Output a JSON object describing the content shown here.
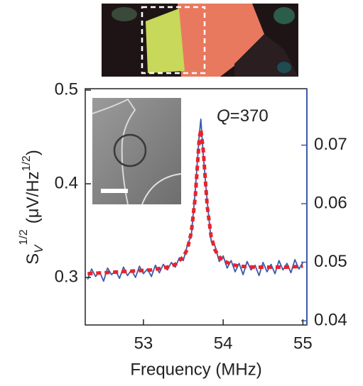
{
  "chart_data": {
    "type": "line",
    "ylabel_parts": [
      "S",
      "V",
      "1/2",
      "(μV/Hz",
      "1/2",
      ")"
    ],
    "xlabel": "Frequency  (MHz)",
    "annotation_parts": [
      "Q",
      "=370"
    ],
    "xlim": [
      52.27,
      55.05
    ],
    "xticks": [
      53,
      54,
      55
    ],
    "ylim": [
      0.25,
      0.5
    ],
    "yticks": [
      0.3,
      0.4,
      0.5
    ],
    "y2lim": [
      0.0394,
      0.0794
    ],
    "y2ticks": [
      0.04,
      0.05,
      0.06,
      0.07
    ],
    "y2color": "#3a5bab",
    "series": [
      {
        "color": "#3a5bab",
        "linestyle": "solid",
        "x": [
          52.3,
          52.35,
          52.4,
          52.45,
          52.5,
          52.55,
          52.6,
          52.65,
          52.7,
          52.75,
          52.8,
          52.85,
          52.9,
          52.95,
          53.0,
          53.05,
          53.1,
          53.15,
          53.2,
          53.25,
          53.3,
          53.35,
          53.4,
          53.45,
          53.5,
          53.55,
          53.6,
          53.65,
          53.7,
          53.72,
          53.75,
          53.8,
          53.85,
          53.9,
          53.95,
          54.0,
          54.05,
          54.1,
          54.15,
          54.2,
          54.25,
          54.3,
          54.35,
          54.4,
          54.45,
          54.5,
          54.55,
          54.6,
          54.65,
          54.7,
          54.75,
          54.8,
          54.85,
          54.9,
          54.95,
          55.0
        ],
        "values": [
          0.298,
          0.309,
          0.301,
          0.306,
          0.296,
          0.31,
          0.303,
          0.307,
          0.299,
          0.311,
          0.302,
          0.308,
          0.3,
          0.312,
          0.304,
          0.309,
          0.301,
          0.313,
          0.305,
          0.314,
          0.308,
          0.316,
          0.311,
          0.321,
          0.318,
          0.334,
          0.345,
          0.392,
          0.452,
          0.469,
          0.431,
          0.381,
          0.339,
          0.333,
          0.317,
          0.323,
          0.31,
          0.318,
          0.306,
          0.315,
          0.303,
          0.317,
          0.308,
          0.313,
          0.302,
          0.316,
          0.306,
          0.314,
          0.304,
          0.318,
          0.308,
          0.315,
          0.305,
          0.319,
          0.309,
          0.316
        ]
      },
      {
        "color": "#e8232b",
        "linestyle": "dashed",
        "x": [
          52.3,
          52.5,
          52.7,
          52.9,
          53.1,
          53.3,
          53.4,
          53.5,
          53.55,
          53.6,
          53.65,
          53.7,
          53.72,
          53.75,
          53.8,
          53.85,
          53.9,
          53.95,
          54.0,
          54.1,
          54.2,
          54.4,
          54.6,
          54.8,
          55.0
        ],
        "values": [
          0.304,
          0.305,
          0.306,
          0.307,
          0.308,
          0.311,
          0.314,
          0.322,
          0.33,
          0.348,
          0.386,
          0.448,
          0.458,
          0.436,
          0.376,
          0.343,
          0.329,
          0.322,
          0.318,
          0.314,
          0.312,
          0.311,
          0.311,
          0.311,
          0.312
        ]
      }
    ]
  }
}
